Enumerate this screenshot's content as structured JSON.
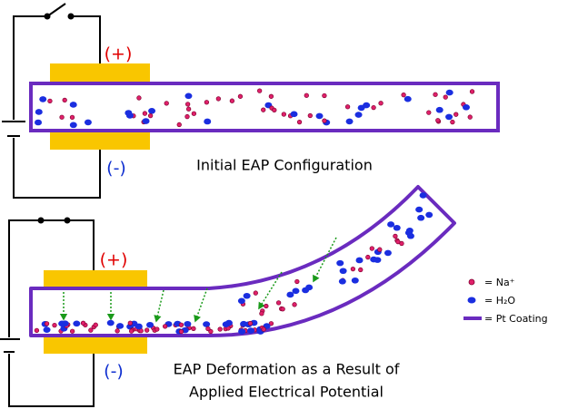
{
  "top_panel": {
    "positive_label": "(+)",
    "negative_label": "(-)",
    "caption": "Initial EAP Configuration"
  },
  "bottom_panel": {
    "positive_label": "(+)",
    "negative_label": "(-)",
    "caption_lines": [
      "EAP Deformation as a Result of",
      "Applied Electrical Potential"
    ]
  },
  "legend": {
    "sodium": "= Na⁺",
    "water": "= H₂O",
    "coating": "= Pt Coating"
  }
}
